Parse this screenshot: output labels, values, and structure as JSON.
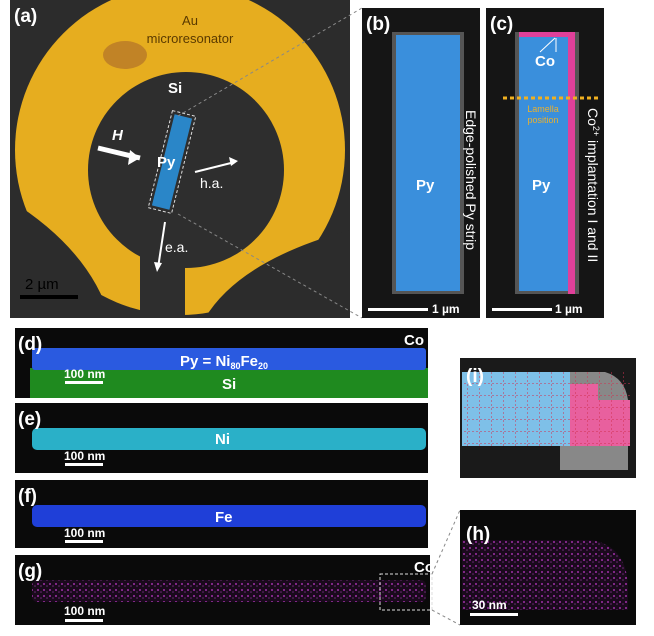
{
  "panels": {
    "a": {
      "label": "(a)",
      "resonator": [
        "Au",
        "microresonator"
      ],
      "substrate": "Si",
      "field": "H",
      "strip": "Py",
      "hard_axis": "h.a.",
      "easy_axis": "e.a.",
      "scale": "2 µm"
    },
    "b": {
      "label": "(b)",
      "strip": "Py",
      "caption": "Edge-polished Py strip",
      "scale": "1 µm"
    },
    "c": {
      "label": "(c)",
      "implant": "Co",
      "lamella": [
        "Lamella",
        "position"
      ],
      "strip": "Py",
      "caption": [
        "Co",
        "2+",
        " implantation I and II"
      ],
      "scale": "1 µm"
    },
    "d": {
      "label": "(d)",
      "formula": [
        "Py = Ni",
        "80",
        "Fe",
        "20"
      ],
      "implant": "Co",
      "substrate": "Si",
      "scale": "100 nm"
    },
    "e": {
      "label": "(e)",
      "element": "Ni",
      "scale": "100 nm"
    },
    "f": {
      "label": "(f)",
      "element": "Fe",
      "scale": "100 nm"
    },
    "g": {
      "label": "(g)",
      "element": "Co",
      "scale": "100 nm"
    },
    "h": {
      "label": "(h)",
      "scale": "30 nm"
    },
    "i": {
      "label": "(i)"
    }
  }
}
